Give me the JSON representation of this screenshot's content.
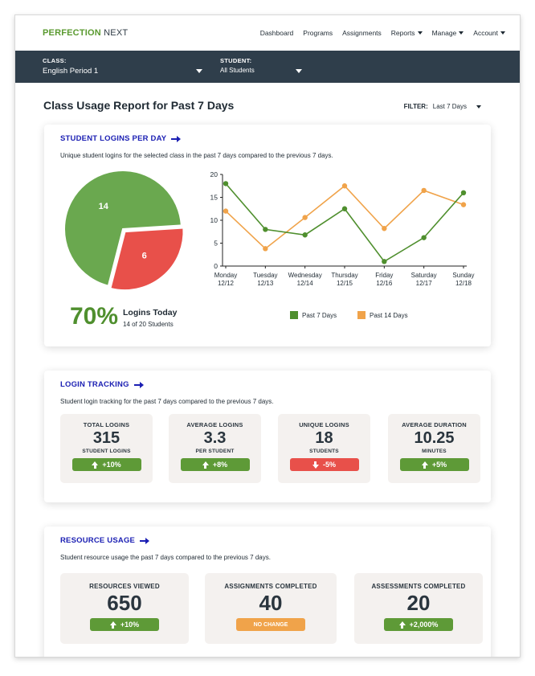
{
  "brand": {
    "logo_part1": "PERFECTION",
    "logo_part2": " NEXT"
  },
  "nav": {
    "items": [
      {
        "label": "Dashboard",
        "dropdown": false
      },
      {
        "label": "Programs",
        "dropdown": false
      },
      {
        "label": "Assignments",
        "dropdown": false
      },
      {
        "label": "Reports",
        "dropdown": true
      },
      {
        "label": "Manage",
        "dropdown": true
      },
      {
        "label": "Account",
        "dropdown": true
      }
    ]
  },
  "filters": {
    "class_label": "CLASS:",
    "class_value": "English Period 1",
    "student_label": "STUDENT:",
    "student_value": "All Students"
  },
  "page": {
    "title": "Class Usage Report for Past 7 Days",
    "filter_label": "FILTER:",
    "filter_value": "Last 7 Days"
  },
  "logins_card": {
    "title": "STUDENT LOGINS PER DAY",
    "description": "Unique student logins for the selected class in the past 7 days compared to the previous 7 days.",
    "percent": "70%",
    "percent_label": "Logins Today",
    "percent_sub": "14 of 20 Students",
    "legend": [
      {
        "name": "Past 7 Days",
        "color": "#4f8f2e"
      },
      {
        "name": "Past 14 Days",
        "color": "#f0a34a"
      }
    ]
  },
  "chart_data": [
    {
      "type": "pie",
      "labels": [
        "14",
        "6"
      ],
      "values": [
        14,
        6
      ],
      "colors": [
        "#6aa84f",
        "#e8504a"
      ]
    },
    {
      "type": "line",
      "categories": [
        "Monday",
        "Tuesday",
        "Wednesday",
        "Thursday",
        "Friday",
        "Saturday",
        "Sunday"
      ],
      "dates": [
        "12/12",
        "12/13",
        "12/14",
        "12/15",
        "12/16",
        "12/17",
        "12/18"
      ],
      "series": [
        {
          "name": "Past 7 Days",
          "color": "#4f8f2e",
          "values": [
            18,
            8,
            6.8,
            12.5,
            1,
            6.2,
            16
          ]
        },
        {
          "name": "Past 14 Days",
          "color": "#f0a34a",
          "values": [
            12,
            3.8,
            10.6,
            17.5,
            8.2,
            16.5,
            13.4
          ]
        }
      ],
      "ylim": [
        0,
        20
      ],
      "yticks": [
        0,
        5,
        10,
        15,
        20
      ],
      "grid": false
    }
  ],
  "tracking_card": {
    "title": "LOGIN TRACKING",
    "description": "Student login tracking for the past 7 days compared to the previous 7 days.",
    "stats": [
      {
        "label": "TOTAL LOGINS",
        "value": "315",
        "sub": "STUDENT LOGINS",
        "change": "+10%",
        "trend": "up"
      },
      {
        "label": "AVERAGE LOGINS",
        "value": "3.3",
        "sub": "PER STUDENT",
        "change": "+8%",
        "trend": "up"
      },
      {
        "label": "UNIQUE LOGINS",
        "value": "18",
        "sub": "STUDENTS",
        "change": "-5%",
        "trend": "down"
      },
      {
        "label": "AVERAGE DURATION",
        "value": "10.25",
        "sub": "MINUTES",
        "change": "+5%",
        "trend": "up"
      }
    ]
  },
  "resource_card": {
    "title": "RESOURCE USAGE",
    "description": "Student resource usage the past 7 days compared to the previous 7 days.",
    "stats": [
      {
        "label": "RESOURCES VIEWED",
        "value": "650",
        "change": "+10%",
        "trend": "up"
      },
      {
        "label": "ASSIGNMENTS COMPLETED",
        "value": "40",
        "change": "NO CHANGE",
        "trend": "none"
      },
      {
        "label": "ASSESSMENTS COMPLETED",
        "value": "20",
        "change": "+2,000%",
        "trend": "up"
      }
    ]
  }
}
